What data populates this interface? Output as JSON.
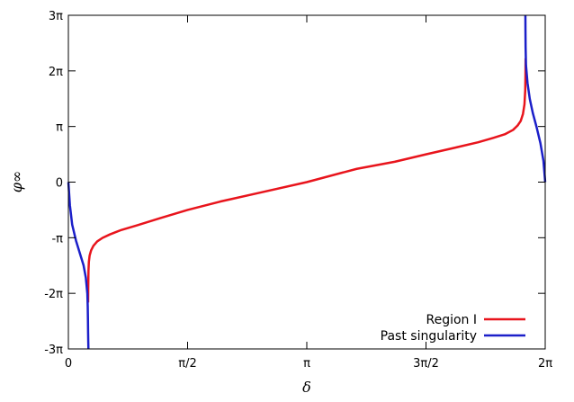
{
  "chart_data": {
    "type": "line",
    "title": "",
    "xlabel": "δ",
    "ylabel": "φ∞",
    "xlim": [
      0,
      6.283185
    ],
    "ylim": [
      -9.42478,
      9.42478
    ],
    "grid": false,
    "legend_placement": "bottom-right",
    "x_ticks": [
      {
        "value": 0,
        "label": "0"
      },
      {
        "value": 1.570796,
        "label": "π/2"
      },
      {
        "value": 3.141593,
        "label": "π"
      },
      {
        "value": 4.712389,
        "label": "3π/2"
      },
      {
        "value": 6.283185,
        "label": "2π"
      }
    ],
    "y_ticks": [
      {
        "value": 9.42478,
        "label": "3π"
      },
      {
        "value": 6.283185,
        "label": "2π"
      },
      {
        "value": 3.141593,
        "label": "π"
      },
      {
        "value": 0,
        "label": "0"
      },
      {
        "value": -3.141593,
        "label": "-π"
      },
      {
        "value": -6.283185,
        "label": "-2π"
      },
      {
        "value": -9.42478,
        "label": "-3π"
      }
    ],
    "series": [
      {
        "name": "Region I",
        "color": "#e8141c",
        "x": [
          0.26,
          0.262,
          0.265,
          0.27,
          0.28,
          0.3,
          0.33,
          0.38,
          0.45,
          0.55,
          0.7,
          0.9,
          1.2,
          1.571,
          2.0,
          2.5,
          3.1416,
          3.8,
          4.3,
          4.712,
          5.1,
          5.4,
          5.6,
          5.75,
          5.86,
          5.92,
          5.96,
          5.99,
          6.01,
          6.02,
          6.023,
          6.025
        ],
        "y": [
          -6.8,
          -5.9,
          -5.0,
          -4.5,
          -4.15,
          -3.85,
          -3.6,
          -3.35,
          -3.15,
          -2.95,
          -2.7,
          -2.45,
          -2.05,
          -1.57,
          -1.1,
          -0.62,
          0.0,
          0.75,
          1.15,
          1.57,
          1.95,
          2.25,
          2.5,
          2.7,
          2.95,
          3.2,
          3.45,
          3.85,
          4.4,
          5.2,
          6.0,
          7.0
        ]
      },
      {
        "name": "Past singularity",
        "color": "#1b1fc9",
        "segments": [
          {
            "x": [
              0.0,
              0.02,
              0.05,
              0.1,
              0.15,
              0.2,
              0.23,
              0.25,
              0.255,
              0.258,
              0.26,
              0.262,
              0.263,
              0.264
            ],
            "y": [
              0.0,
              -1.3,
              -2.4,
              -3.3,
              -4.0,
              -4.7,
              -5.4,
              -6.3,
              -7.0,
              -7.8,
              -8.5,
              -9.0,
              -9.2,
              -9.42
            ]
          },
          {
            "x": [
              6.022,
              6.023,
              6.025,
              6.03,
              6.05,
              6.08,
              6.12,
              6.17,
              6.22,
              6.26,
              6.283
            ],
            "y": [
              9.42,
              8.6,
              7.6,
              6.6,
              5.6,
              4.7,
              3.9,
              3.1,
              2.2,
              1.2,
              0.0
            ]
          }
        ]
      }
    ]
  }
}
